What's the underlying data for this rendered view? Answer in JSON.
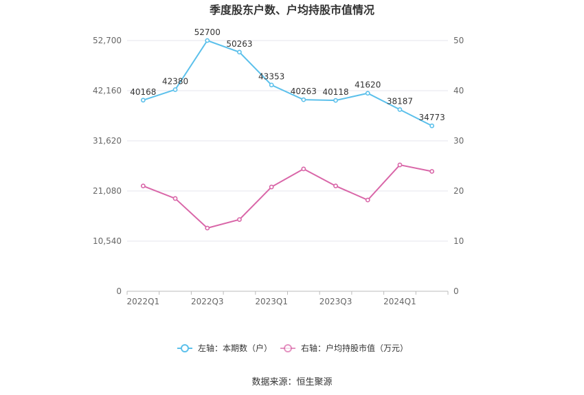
{
  "chart_data": {
    "type": "line",
    "title": "季度股东户数、户均持股市值情况",
    "categories": [
      "2022Q1",
      "2022Q2",
      "2022Q3",
      "2022Q4",
      "2023Q1",
      "2023Q2",
      "2023Q3",
      "2023Q4",
      "2024Q1",
      "2024Q2"
    ],
    "x_tick_labels": [
      "2022Q1",
      "2022Q3",
      "2023Q1",
      "2023Q3",
      "2024Q1"
    ],
    "left_axis": {
      "ticks": [
        "0",
        "10,540",
        "21,080",
        "31,620",
        "42,160",
        "52,700"
      ],
      "ylim": [
        0,
        52700
      ]
    },
    "right_axis": {
      "ticks": [
        "0",
        "10",
        "20",
        "30",
        "40",
        "50"
      ],
      "ylim": [
        0,
        50
      ]
    },
    "series": [
      {
        "name": "左轴：本期数（户）",
        "axis": "left",
        "color": "#5bc0eb",
        "values": [
          40168,
          42380,
          52700,
          50263,
          43353,
          40263,
          40118,
          41620,
          38187,
          34773
        ],
        "labels": [
          "40168",
          "42380",
          "52700",
          "50263",
          "43353",
          "40263",
          "40118",
          "41620",
          "38187",
          "34773"
        ]
      },
      {
        "name": "右轴：户均持股市值（万元）",
        "axis": "right",
        "color": "#d966a8",
        "values": [
          21.0,
          18.5,
          12.6,
          14.3,
          20.8,
          24.4,
          21.0,
          18.2,
          25.2,
          23.9
        ]
      }
    ],
    "legend_position": "bottom",
    "grid": true,
    "source": "数据来源：恒生聚源"
  }
}
